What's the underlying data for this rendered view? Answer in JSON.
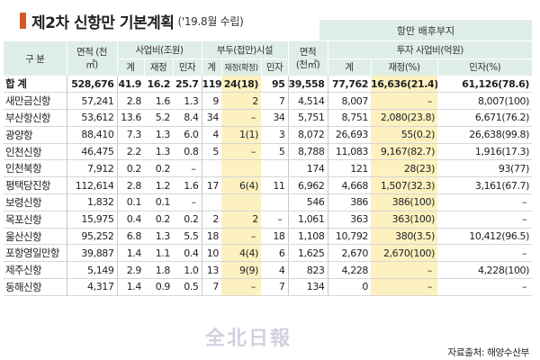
{
  "title": {
    "main": "제2차 신항만 기본계획",
    "sub": "('19.8월 수립)"
  },
  "header": {
    "port_group": "항만 배후부지",
    "col_gubun": "구 분",
    "col_area": "면적 (천㎡)",
    "grp_biz": "사업비(조원)",
    "grp_wharf": "부두(접안)시설",
    "col_area2": "면적 (천㎡)",
    "grp_invest": "투자 사업비(억원)",
    "sub_gye": "계",
    "sub_jaejeong": "재정",
    "sub_minja": "민자",
    "sub_gye2": "계",
    "sub_jaejeong_hwak": "재정(확정)",
    "sub_minja2": "민자",
    "sub_gye3": "계",
    "sub_jaejeong_pct": "재정(%)",
    "sub_minja_pct": "민자(%)"
  },
  "rows": [
    {
      "name": "합 계",
      "area": "528,676",
      "b_total": "41.9",
      "b_fiscal": "16.2",
      "b_private": "25.7",
      "w_total": "119",
      "w_fiscal": "24(18)",
      "w_private": "95",
      "p_area": "39,558",
      "p_total": "77,762",
      "p_fiscal": "16,636(21.4)",
      "p_private": "61,126(78.6)"
    },
    {
      "name": "새만금신항",
      "area": "57,241",
      "b_total": "2.8",
      "b_fiscal": "1.6",
      "b_private": "1.3",
      "w_total": "9",
      "w_fiscal": "2",
      "w_private": "7",
      "p_area": "4,514",
      "p_total": "8,007",
      "p_fiscal": "–",
      "p_private": "8,007(100)"
    },
    {
      "name": "부산항신항",
      "area": "53,612",
      "b_total": "13.6",
      "b_fiscal": "5.2",
      "b_private": "8.4",
      "w_total": "34",
      "w_fiscal": "–",
      "w_private": "34",
      "p_area": "5,751",
      "p_total": "8,751",
      "p_fiscal": "2,080(23.8)",
      "p_private": "6,671(76.2)"
    },
    {
      "name": "광양항",
      "area": "88,410",
      "b_total": "7.3",
      "b_fiscal": "1.3",
      "b_private": "6.0",
      "w_total": "4",
      "w_fiscal": "1(1)",
      "w_private": "3",
      "p_area": "8,072",
      "p_total": "26,693",
      "p_fiscal": "55(0.2)",
      "p_private": "26,638(99.8)"
    },
    {
      "name": "인천신항",
      "area": "46,475",
      "b_total": "2.2",
      "b_fiscal": "1.3",
      "b_private": "0.8",
      "w_total": "5",
      "w_fiscal": "–",
      "w_private": "5",
      "p_area": "8,788",
      "p_total": "11,083",
      "p_fiscal": "9,167(82.7)",
      "p_private": "1,916(17.3)"
    },
    {
      "name": "인천북항",
      "area": "7,912",
      "b_total": "0.2",
      "b_fiscal": "0.2",
      "b_private": "–",
      "w_total": "",
      "w_fiscal": "",
      "w_private": "",
      "p_area": "174",
      "p_total": "121",
      "p_fiscal": "28(23)",
      "p_private": "93(77)"
    },
    {
      "name": "평택당진항",
      "area": "112,614",
      "b_total": "2.8",
      "b_fiscal": "1.2",
      "b_private": "1.6",
      "w_total": "17",
      "w_fiscal": "6(4)",
      "w_private": "11",
      "p_area": "6,962",
      "p_total": "4,668",
      "p_fiscal": "1,507(32.3)",
      "p_private": "3,161(67.7)"
    },
    {
      "name": "보령신항",
      "area": "1,832",
      "b_total": "0.1",
      "b_fiscal": "0.1",
      "b_private": "–",
      "w_total": "",
      "w_fiscal": "",
      "w_private": "",
      "p_area": "546",
      "p_total": "386",
      "p_fiscal": "386(100)",
      "p_private": "–"
    },
    {
      "name": "목포신항",
      "area": "15,975",
      "b_total": "0.4",
      "b_fiscal": "0.2",
      "b_private": "0.2",
      "w_total": "2",
      "w_fiscal": "2",
      "w_private": "–",
      "p_area": "1,061",
      "p_total": "363",
      "p_fiscal": "363(100)",
      "p_private": "–"
    },
    {
      "name": "울산신항",
      "area": "95,252",
      "b_total": "6.8",
      "b_fiscal": "1.3",
      "b_private": "5.5",
      "w_total": "18",
      "w_fiscal": "–",
      "w_private": "18",
      "p_area": "1,108",
      "p_total": "10,792",
      "p_fiscal": "380(3.5)",
      "p_private": "10,412(96.5)"
    },
    {
      "name": "포항영일만항",
      "area": "39,887",
      "b_total": "1.4",
      "b_fiscal": "1.1",
      "b_private": "0.4",
      "w_total": "10",
      "w_fiscal": "4(4)",
      "w_private": "6",
      "p_area": "1,625",
      "p_total": "2,670",
      "p_fiscal": "2,670(100)",
      "p_private": "–"
    },
    {
      "name": "제주신항",
      "area": "5,149",
      "b_total": "2.9",
      "b_fiscal": "1.8",
      "b_private": "1.0",
      "w_total": "13",
      "w_fiscal": "9(9)",
      "w_private": "4",
      "p_area": "823",
      "p_total": "4,228",
      "p_fiscal": "–",
      "p_private": "4,228(100)"
    },
    {
      "name": "동해신항",
      "area": "4,317",
      "b_total": "1.4",
      "b_fiscal": "0.9",
      "b_private": "0.5",
      "w_total": "7",
      "w_fiscal": "–",
      "w_private": "7",
      "p_area": "134",
      "p_total": "0",
      "p_fiscal": "–",
      "p_private": "–"
    }
  ],
  "source": "자료출처: 해양수산부",
  "watermark": "全北日報",
  "colors": {
    "header_bg": "#dfeee6",
    "highlight": "#fdf1c0",
    "marker": "#d8572a"
  }
}
